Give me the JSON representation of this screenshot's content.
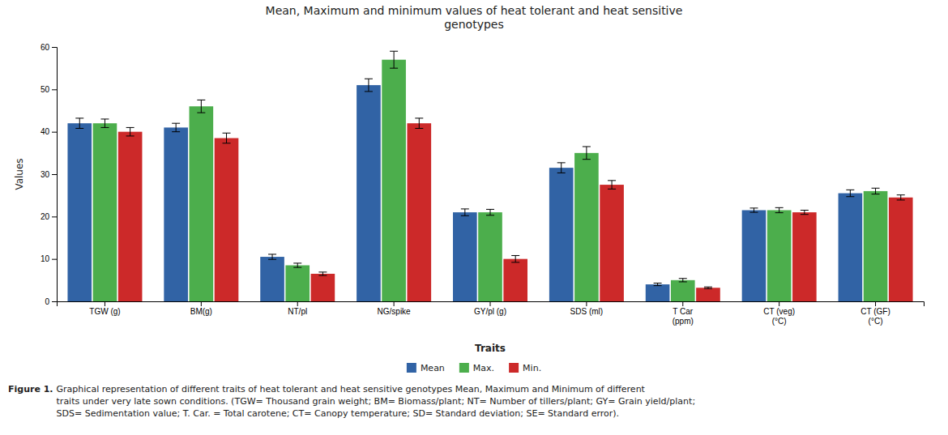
{
  "chart_data": {
    "type": "bar",
    "title": "Mean, Maximum and minimum values of heat tolerant and heat sensitive\ngenotypes",
    "xlabel": "Traits",
    "ylabel": "Values",
    "categories": [
      "TGW (g)",
      "BM(g)",
      "NT/pl",
      "NG/spike",
      "GY/pl (g)",
      "SDS (ml)",
      "T Car\n(ppm)",
      "CT (veg)\n(°C)",
      "CT (GF)\n(°C)"
    ],
    "series": [
      {
        "name": "Mean",
        "color": "#3163a5",
        "values": [
          42,
          41,
          10.5,
          51,
          21,
          31.5,
          4,
          21.5,
          25.5
        ],
        "errors": [
          1.2,
          1.0,
          0.6,
          1.5,
          0.8,
          1.2,
          0.3,
          0.5,
          0.8
        ]
      },
      {
        "name": "Max.",
        "color": "#4cae4c",
        "values": [
          42,
          46,
          8.5,
          57,
          21,
          35,
          5,
          21.5,
          26
        ],
        "errors": [
          1.0,
          1.5,
          0.5,
          2.0,
          0.7,
          1.5,
          0.4,
          0.6,
          0.7
        ]
      },
      {
        "name": "Min.",
        "color": "#cc2929",
        "values": [
          40,
          38.5,
          6.5,
          42,
          10,
          27.5,
          3.2,
          21,
          24.5
        ],
        "errors": [
          1.0,
          1.2,
          0.4,
          1.2,
          0.8,
          1.0,
          0.2,
          0.5,
          0.6
        ]
      }
    ],
    "ylim": [
      0,
      60
    ],
    "yticks": [
      0,
      10,
      20,
      30,
      40,
      50,
      60
    ],
    "grid": false,
    "legend": "bottom",
    "annotations": [
      "Figure 1.",
      " Graphical representation of different traits of heat tolerant and heat sensitive genotypes Mean, Maximum and Minimum of different\ntraits under very late sown conditions. (TGW= Thousand grain weight; BM= Biomass/plant; NT= Number of tillers/plant; GY= Grain yield/plant;\nSDS= Sedimentation value; T. Car. = Total carotene; CT= Canopy temperature; SD= Standard deviation; SE= Standard error)."
    ]
  }
}
